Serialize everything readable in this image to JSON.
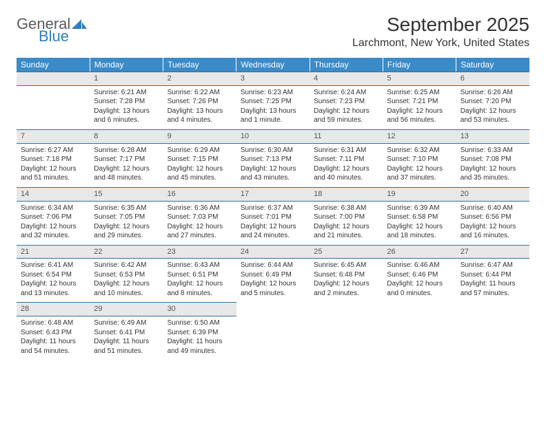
{
  "logo": {
    "word1": "General",
    "word2": "Blue"
  },
  "title": "September 2025",
  "location": "Larchmont, New York, United States",
  "colors": {
    "header_bg": "#3b8bc8",
    "header_text": "#ffffff",
    "daynum_bg": "#e8e8e8",
    "rule": "#2f6fa0",
    "logo_gray": "#5a5a5a",
    "logo_blue": "#2f7fc2"
  },
  "weekdays": [
    "Sunday",
    "Monday",
    "Tuesday",
    "Wednesday",
    "Thursday",
    "Friday",
    "Saturday"
  ],
  "weeks": [
    [
      null,
      {
        "n": "1",
        "sr": "Sunrise: 6:21 AM",
        "ss": "Sunset: 7:28 PM",
        "dl": "Daylight: 13 hours and 6 minutes."
      },
      {
        "n": "2",
        "sr": "Sunrise: 6:22 AM",
        "ss": "Sunset: 7:26 PM",
        "dl": "Daylight: 13 hours and 4 minutes."
      },
      {
        "n": "3",
        "sr": "Sunrise: 6:23 AM",
        "ss": "Sunset: 7:25 PM",
        "dl": "Daylight: 13 hours and 1 minute."
      },
      {
        "n": "4",
        "sr": "Sunrise: 6:24 AM",
        "ss": "Sunset: 7:23 PM",
        "dl": "Daylight: 12 hours and 59 minutes."
      },
      {
        "n": "5",
        "sr": "Sunrise: 6:25 AM",
        "ss": "Sunset: 7:21 PM",
        "dl": "Daylight: 12 hours and 56 minutes."
      },
      {
        "n": "6",
        "sr": "Sunrise: 6:26 AM",
        "ss": "Sunset: 7:20 PM",
        "dl": "Daylight: 12 hours and 53 minutes."
      }
    ],
    [
      {
        "n": "7",
        "sr": "Sunrise: 6:27 AM",
        "ss": "Sunset: 7:18 PM",
        "dl": "Daylight: 12 hours and 51 minutes."
      },
      {
        "n": "8",
        "sr": "Sunrise: 6:28 AM",
        "ss": "Sunset: 7:17 PM",
        "dl": "Daylight: 12 hours and 48 minutes."
      },
      {
        "n": "9",
        "sr": "Sunrise: 6:29 AM",
        "ss": "Sunset: 7:15 PM",
        "dl": "Daylight: 12 hours and 45 minutes."
      },
      {
        "n": "10",
        "sr": "Sunrise: 6:30 AM",
        "ss": "Sunset: 7:13 PM",
        "dl": "Daylight: 12 hours and 43 minutes."
      },
      {
        "n": "11",
        "sr": "Sunrise: 6:31 AM",
        "ss": "Sunset: 7:11 PM",
        "dl": "Daylight: 12 hours and 40 minutes."
      },
      {
        "n": "12",
        "sr": "Sunrise: 6:32 AM",
        "ss": "Sunset: 7:10 PM",
        "dl": "Daylight: 12 hours and 37 minutes."
      },
      {
        "n": "13",
        "sr": "Sunrise: 6:33 AM",
        "ss": "Sunset: 7:08 PM",
        "dl": "Daylight: 12 hours and 35 minutes."
      }
    ],
    [
      {
        "n": "14",
        "sr": "Sunrise: 6:34 AM",
        "ss": "Sunset: 7:06 PM",
        "dl": "Daylight: 12 hours and 32 minutes."
      },
      {
        "n": "15",
        "sr": "Sunrise: 6:35 AM",
        "ss": "Sunset: 7:05 PM",
        "dl": "Daylight: 12 hours and 29 minutes."
      },
      {
        "n": "16",
        "sr": "Sunrise: 6:36 AM",
        "ss": "Sunset: 7:03 PM",
        "dl": "Daylight: 12 hours and 27 minutes."
      },
      {
        "n": "17",
        "sr": "Sunrise: 6:37 AM",
        "ss": "Sunset: 7:01 PM",
        "dl": "Daylight: 12 hours and 24 minutes."
      },
      {
        "n": "18",
        "sr": "Sunrise: 6:38 AM",
        "ss": "Sunset: 7:00 PM",
        "dl": "Daylight: 12 hours and 21 minutes."
      },
      {
        "n": "19",
        "sr": "Sunrise: 6:39 AM",
        "ss": "Sunset: 6:58 PM",
        "dl": "Daylight: 12 hours and 18 minutes."
      },
      {
        "n": "20",
        "sr": "Sunrise: 6:40 AM",
        "ss": "Sunset: 6:56 PM",
        "dl": "Daylight: 12 hours and 16 minutes."
      }
    ],
    [
      {
        "n": "21",
        "sr": "Sunrise: 6:41 AM",
        "ss": "Sunset: 6:54 PM",
        "dl": "Daylight: 12 hours and 13 minutes."
      },
      {
        "n": "22",
        "sr": "Sunrise: 6:42 AM",
        "ss": "Sunset: 6:53 PM",
        "dl": "Daylight: 12 hours and 10 minutes."
      },
      {
        "n": "23",
        "sr": "Sunrise: 6:43 AM",
        "ss": "Sunset: 6:51 PM",
        "dl": "Daylight: 12 hours and 8 minutes."
      },
      {
        "n": "24",
        "sr": "Sunrise: 6:44 AM",
        "ss": "Sunset: 6:49 PM",
        "dl": "Daylight: 12 hours and 5 minutes."
      },
      {
        "n": "25",
        "sr": "Sunrise: 6:45 AM",
        "ss": "Sunset: 6:48 PM",
        "dl": "Daylight: 12 hours and 2 minutes."
      },
      {
        "n": "26",
        "sr": "Sunrise: 6:46 AM",
        "ss": "Sunset: 6:46 PM",
        "dl": "Daylight: 12 hours and 0 minutes."
      },
      {
        "n": "27",
        "sr": "Sunrise: 6:47 AM",
        "ss": "Sunset: 6:44 PM",
        "dl": "Daylight: 11 hours and 57 minutes."
      }
    ],
    [
      {
        "n": "28",
        "sr": "Sunrise: 6:48 AM",
        "ss": "Sunset: 6:43 PM",
        "dl": "Daylight: 11 hours and 54 minutes."
      },
      {
        "n": "29",
        "sr": "Sunrise: 6:49 AM",
        "ss": "Sunset: 6:41 PM",
        "dl": "Daylight: 11 hours and 51 minutes."
      },
      {
        "n": "30",
        "sr": "Sunrise: 6:50 AM",
        "ss": "Sunset: 6:39 PM",
        "dl": "Daylight: 11 hours and 49 minutes."
      },
      null,
      null,
      null,
      null
    ]
  ]
}
